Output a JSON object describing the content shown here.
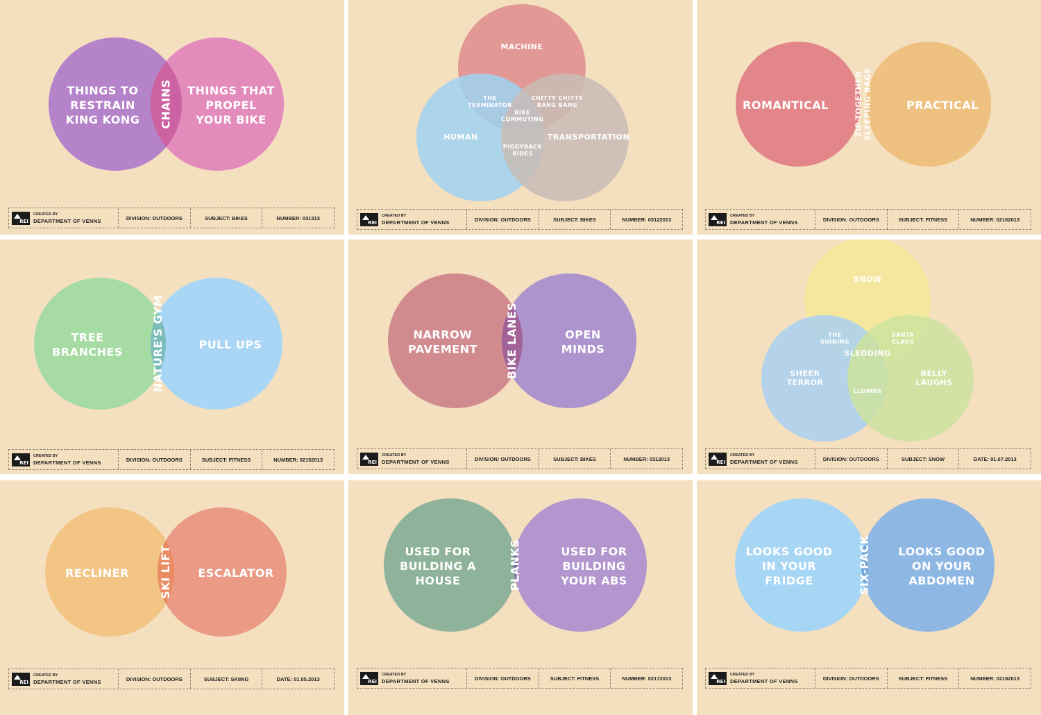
{
  "footer_text": {
    "created_by": "CREATED BY",
    "department": "DEPARTMENT OF VENNS",
    "logo": "REI",
    "division_label": "DIVISION:",
    "subject_label": "SUBJECT:",
    "number_label": "NUMBER:",
    "date_label": "DATE:"
  },
  "panels": [
    {
      "id": "p1",
      "colors": [
        "#b583c9",
        "#e38cbc"
      ],
      "overlap_color": "#c95a9e",
      "circles": [
        "THINGS TO|RESTRAIN|KING KONG",
        "THINGS THAT|PROPEL|YOUR BIKE"
      ],
      "overlap": "CHAINS",
      "division": "OUTDOORS",
      "subject": "BIKES",
      "last_kind": "number",
      "last_value": "031313"
    },
    {
      "id": "p2",
      "colors": [
        "#de8c8c",
        "#9fd2f1",
        "#c8bcb6"
      ],
      "circles": [
        "MACHINE",
        "HUMAN",
        "TRANSPORTATION"
      ],
      "pairs": [
        "THE|TERMINATOR",
        "CHITTY CHITTY|BANG BANG",
        "PIGGYBACK|RIDES"
      ],
      "center": "BIKE|COMMUTING",
      "division": "OUTDOORS",
      "subject": "BIKES",
      "last_kind": "number",
      "last_value": "03122013"
    },
    {
      "id": "p3",
      "colors": [
        "#e3868a",
        "#efc181"
      ],
      "overlap_color": "#e8925a",
      "circles": [
        "ROMANTICAL",
        "PRACTICAL"
      ],
      "overlap": "ZIP-TOGETHER|SLEEPING BAGS",
      "division": "OUTDOORS",
      "subject": "FITNESS",
      "last_kind": "number",
      "last_value": "02162013"
    },
    {
      "id": "p4",
      "colors": [
        "#a6dba4",
        "#a8d6f4"
      ],
      "overlap_color": "#74b9b2",
      "circles": [
        "TREE|BRANCHES",
        "PULL UPS"
      ],
      "overlap": "NATURE'S GYM",
      "division": "OUTDOORS",
      "subject": "FITNESS",
      "last_kind": "number",
      "last_value": "02152013"
    },
    {
      "id": "p5",
      "colors": [
        "#d18b8f",
        "#ad94cd"
      ],
      "overlap_color": "#9f5b8d",
      "circles": [
        "NARROW|PAVEMENT",
        "OPEN|MINDS"
      ],
      "overlap": "BIKE LANES",
      "division": "OUTDOORS",
      "subject": "BIKES",
      "last_kind": "number",
      "last_value": "0312013"
    },
    {
      "id": "p6",
      "colors": [
        "#f5ea98",
        "#a8d0f1",
        "#cde39f"
      ],
      "circles": [
        "SNOW",
        "SHEER|TERROR",
        "BELLY|LAUGHS"
      ],
      "pairs": [
        "THE|SHINING",
        "SANTA|CLAUS",
        "CLOWNS"
      ],
      "center": "SLEDDING",
      "division": "OUTDOORS",
      "subject": "SNOW",
      "last_kind": "date",
      "last_value": "01.07.2013"
    },
    {
      "id": "p7",
      "colors": [
        "#f3c585",
        "#eb9a85"
      ],
      "overlap_color": "#e9895d",
      "circles": [
        "RECLINER",
        "ESCALATOR"
      ],
      "overlap": "SKI LIFT",
      "division": "OUTDOORS",
      "subject": "SKIING",
      "last_kind": "date",
      "last_value": "01.05.2013"
    },
    {
      "id": "p8",
      "colors": [
        "#8eb39a",
        "#b296cd"
      ],
      "overlap_color": "#6f6e9c",
      "circles": [
        "USED FOR|BUILDING A|HOUSE",
        "USED FOR|BUILDING|YOUR ABS"
      ],
      "overlap": "PLANKS",
      "division": "OUTDOORS",
      "subject": "FITNESS",
      "last_kind": "number",
      "last_value": "02172013"
    },
    {
      "id": "p9",
      "colors": [
        "#a7d6f4",
        "#8eb8e3"
      ],
      "overlap_color": "#6ea3d2",
      "circles": [
        "LOOKS GOOD|IN YOUR|FRIDGE",
        "LOOKS GOOD|ON YOUR|ABDOMEN"
      ],
      "overlap": "SIX-PACK",
      "division": "OUTDOORS",
      "subject": "FITNESS",
      "last_kind": "number",
      "last_value": "02182013"
    }
  ]
}
